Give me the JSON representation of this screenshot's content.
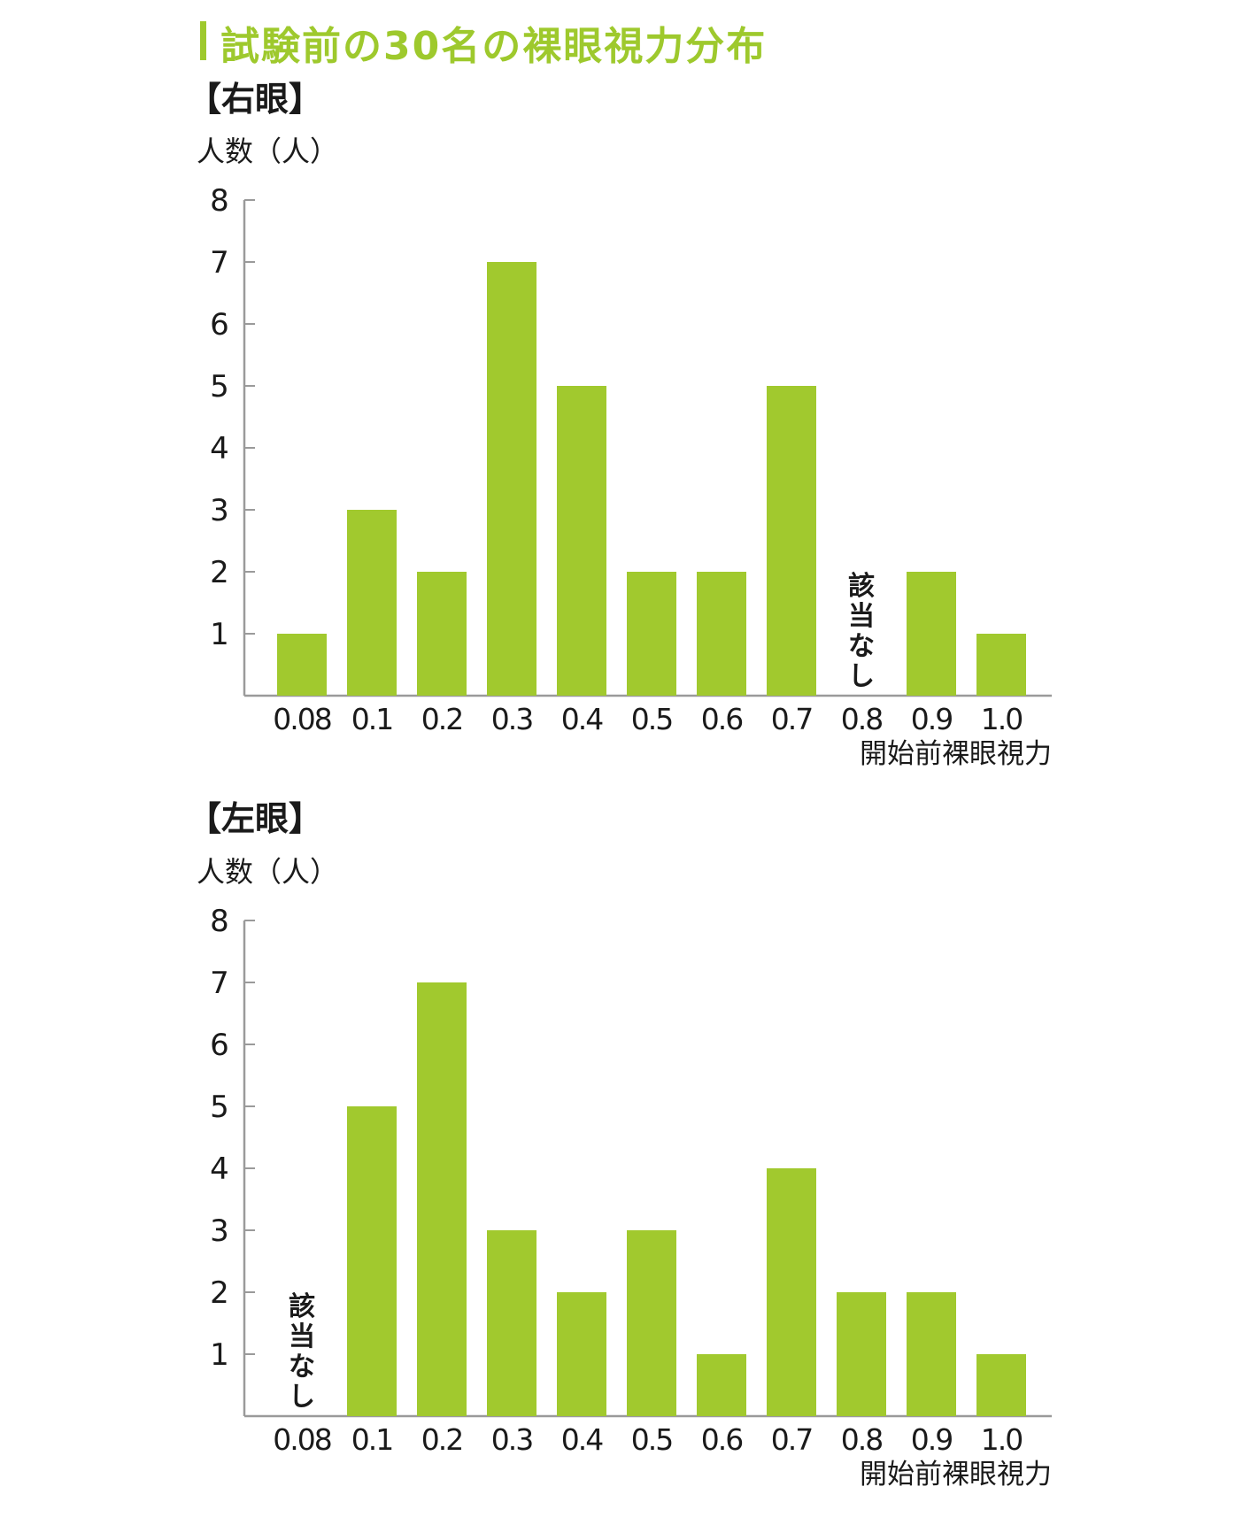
{
  "title": "試験前の30名の裸眼視力分布",
  "colors": {
    "accent": "#9ec92d",
    "bar": "#a1c92e",
    "axis": "#9a9a9a",
    "text": "#1a1a1a"
  },
  "chart_data": [
    {
      "type": "bar",
      "title": "【右眼】",
      "ylabel": "人数（人）",
      "xlabel": "開始前裸眼視力",
      "categories": [
        "0.08",
        "0.1",
        "0.2",
        "0.3",
        "0.4",
        "0.5",
        "0.6",
        "0.7",
        "0.8",
        "0.9",
        "1.0"
      ],
      "values": [
        1,
        3,
        2,
        7,
        5,
        2,
        2,
        5,
        0,
        2,
        1
      ],
      "yticks": [
        1,
        2,
        3,
        4,
        5,
        6,
        7,
        8
      ],
      "ylim": [
        0,
        8
      ],
      "annotations": [
        {
          "category": "0.8",
          "text": "該当なし"
        }
      ]
    },
    {
      "type": "bar",
      "title": "【左眼】",
      "ylabel": "人数（人）",
      "xlabel": "開始前裸眼視力",
      "categories": [
        "0.08",
        "0.1",
        "0.2",
        "0.3",
        "0.4",
        "0.5",
        "0.6",
        "0.7",
        "0.8",
        "0.9",
        "1.0"
      ],
      "values": [
        0,
        5,
        7,
        3,
        2,
        3,
        1,
        4,
        2,
        2,
        1
      ],
      "yticks": [
        1,
        2,
        3,
        4,
        5,
        6,
        7,
        8
      ],
      "ylim": [
        0,
        8
      ],
      "annotations": [
        {
          "category": "0.08",
          "text": "該当なし"
        }
      ]
    }
  ]
}
